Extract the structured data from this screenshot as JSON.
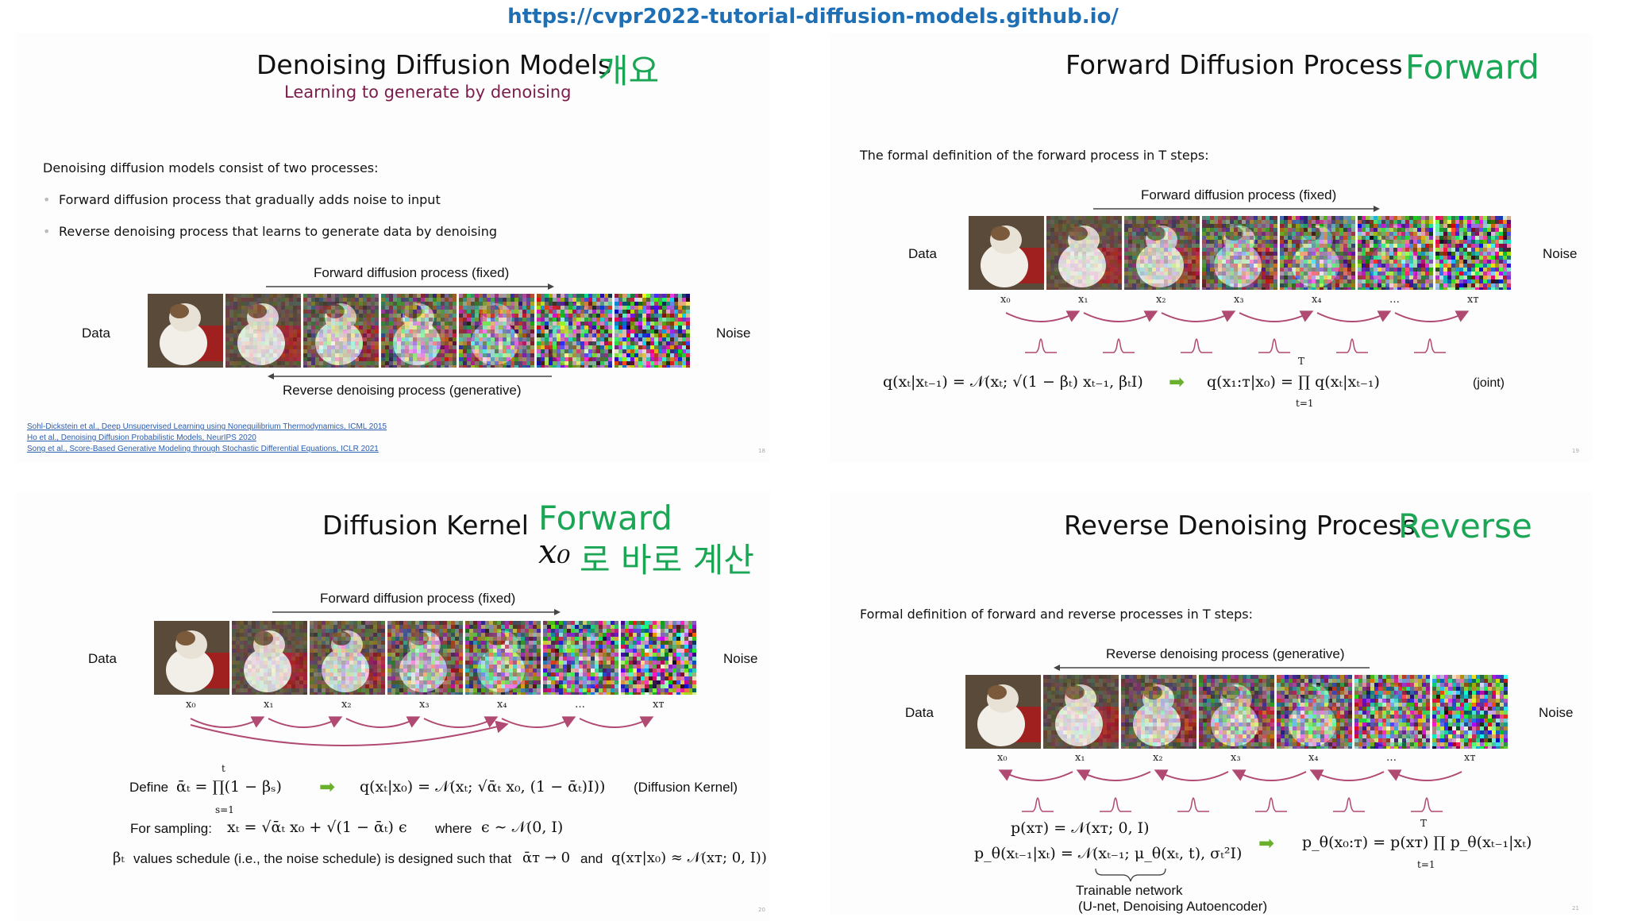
{
  "url": "https://cvpr2022-tutorial-diffusion-models.github.io/",
  "slides": {
    "s1": {
      "title": "Denoising Diffusion Models",
      "tag": "개요",
      "subtitle": "Learning to generate by denoising",
      "intro": "Denoising diffusion models consist of two processes:",
      "bullets": [
        "Forward diffusion process that gradually adds noise to input",
        "Reverse denoising process that learns to generate data by denoising"
      ],
      "forward_label": "Forward diffusion process (fixed)",
      "reverse_label": "Reverse denoising process (generative)",
      "data_label": "Data",
      "noise_label": "Noise",
      "refs": [
        "Sohl-Dickstein et al., Deep Unsupervised Learning using Nonequilibrium Thermodynamics, ICML 2015",
        "Ho et al., Denoising Diffusion Probabilistic Models, NeurIPS 2020",
        "Song et al., Score-Based Generative Modeling through Stochastic Differential Equations, ICLR 2021"
      ],
      "page": "18"
    },
    "s2": {
      "title": "Forward Diffusion Process",
      "tag": "Forward",
      "intro": "The formal definition of the forward process in T steps:",
      "forward_label": "Forward diffusion process (fixed)",
      "data_label": "Data",
      "noise_label": "Noise",
      "x_labels": [
        "x₀",
        "x₁",
        "x₂",
        "x₃",
        "x₄",
        "…",
        "xᴛ"
      ],
      "eq_left": "q(xₜ|xₜ₋₁) = 𝒩(xₜ; √(1 − βₜ) xₜ₋₁, βₜI)",
      "eq_right": "q(x₁:ᴛ|x₀) = ∏ q(xₜ|xₜ₋₁)",
      "prod_top": "T",
      "prod_bottom": "t=1",
      "joint": "(joint)",
      "page": "19"
    },
    "s3": {
      "title": "Diffusion Kernel",
      "tag1": "Forward",
      "tag2_math": "x₀",
      "tag2_text": "로 바로 계산",
      "forward_label": "Forward diffusion process (fixed)",
      "data_label": "Data",
      "noise_label": "Noise",
      "x_labels": [
        "x₀",
        "x₁",
        "x₂",
        "x₃",
        "x₄",
        "…",
        "xᴛ"
      ],
      "define": "Define",
      "define_eq": "ᾱₜ = ∏(1 − βₛ)",
      "prod_top": "t",
      "prod_bottom": "s=1",
      "kernel_eq": "q(xₜ|x₀) = 𝒩(xₜ; √ᾱₜ x₀, (1 − ᾱₜ)I))",
      "kernel_label": "(Diffusion Kernel)",
      "sampling_label": "For sampling:",
      "sampling_eq": "xₜ = √ᾱₜ x₀ + √(1 − ᾱₜ) ϵ",
      "where_label": "where",
      "where_eq": "ϵ ∼ 𝒩(0, I)",
      "schedule_prefix": "βₜ",
      "schedule_text": "values schedule (i.e., the noise schedule) is designed such that",
      "schedule_eq1": "ᾱᴛ → 0",
      "schedule_and": "and",
      "schedule_eq2": "q(xᴛ|x₀) ≈ 𝒩(xᴛ; 0, I))",
      "page": "20"
    },
    "s4": {
      "title": "Reverse Denoising Process",
      "tag": "Reverse",
      "intro": "Formal definition of forward and reverse processes in T steps:",
      "reverse_label": "Reverse denoising process (generative)",
      "data_label": "Data",
      "noise_label": "Noise",
      "x_labels": [
        "x₀",
        "x₁",
        "x₂",
        "x₃",
        "x₄",
        "…",
        "xᴛ"
      ],
      "eq1": "p(xᴛ) = 𝒩(xᴛ; 0, I)",
      "eq2": "p_θ(xₜ₋₁|xₜ) = 𝒩(xₜ₋₁; μ_θ(xₜ, t), σₜ²I)",
      "eq3": "p_θ(x₀:ᴛ) = p(xᴛ) ∏ p_θ(xₜ₋₁|xₜ)",
      "prod_top": "T",
      "prod_bottom": "t=1",
      "trainable": "Trainable network",
      "trainable_sub": "(U-net, Denoising Autoencoder)",
      "page": "21"
    }
  },
  "colors": {
    "url": "#1f6fb5",
    "tag_green": "#1aa655",
    "subtitle": "#7a1d4c",
    "arrow_purple": "#b04a72",
    "green_arrow": "#6ab02c"
  },
  "noise_levels": [
    0,
    0.15,
    0.3,
    0.45,
    0.6,
    0.8,
    1.0
  ]
}
